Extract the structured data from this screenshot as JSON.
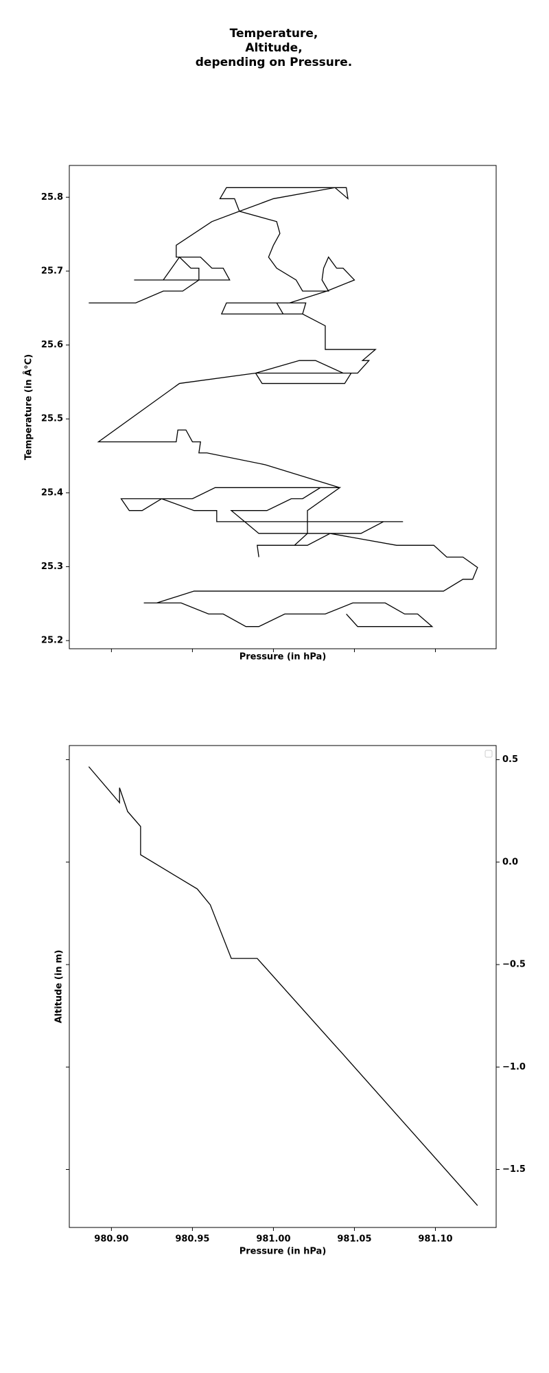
{
  "chart_data": [
    {
      "type": "line",
      "title": "Temperature,\nAltitude,\ndepending on Pressure.",
      "xlabel": "Pressure (in hPa)",
      "ylabel": "Temperature (in Â°C)",
      "xlim": [
        980.874,
        981.1375
      ],
      "ylim": [
        25.189,
        25.843
      ],
      "yticks": [
        25.2,
        25.3,
        25.4,
        25.5,
        25.6,
        25.7,
        25.8
      ],
      "x": [
        980.886,
        980.915,
        980.932,
        980.944,
        980.954,
        980.954,
        980.949,
        980.942,
        980.932,
        980.914,
        980.973,
        980.969,
        980.962,
        980.955,
        980.94,
        980.94,
        980.962,
        980.979,
        980.976,
        980.967,
        980.971,
        981.045,
        981.046,
        981.038,
        981.0,
        980.979,
        981.002,
        981.004,
        981.0,
        980.997,
        981.002,
        981.014,
        981.018,
        981.034,
        981.03,
        981.031,
        981.034,
        981.039,
        981.043,
        981.05,
        981.033,
        981.01,
        981.001,
        981.02,
        981.018,
        981.006,
        981.002,
        980.971,
        980.968,
        981.018,
        981.032,
        981.032,
        981.063,
        981.055,
        981.059,
        981.052,
        981.043,
        981.026,
        981.016,
        980.989,
        980.993,
        981.044,
        981.048,
        980.989,
        980.942,
        980.892,
        980.94,
        980.941,
        980.946,
        980.95,
        980.955,
        980.954,
        980.959,
        980.995,
        981.041,
        980.964,
        980.95,
        980.906,
        980.911,
        980.919,
        980.931,
        980.951,
        980.965,
        980.965,
        981.08,
        981.068,
        981.054,
        980.991,
        980.974,
        980.996,
        981.011,
        981.018,
        981.029,
        981.041,
        981.021,
        981.021,
        981.013,
        980.99,
        980.991,
        980.99,
        981.021,
        981.035,
        981.076,
        981.099,
        981.107,
        981.117,
        981.126,
        981.123,
        981.117,
        981.105,
        980.951,
        980.928,
        980.92,
        980.943,
        980.96,
        980.969,
        980.983,
        980.991,
        981.007,
        981.032,
        981.049,
        981.069,
        981.081,
        981.089,
        981.098,
        981.052,
        981.045
      ],
      "series": [
        {
          "color": "#000000",
          "values": [
            25.657,
            25.657,
            25.673,
            25.673,
            25.688,
            25.704,
            25.704,
            25.719,
            25.688,
            25.688,
            25.688,
            25.704,
            25.704,
            25.719,
            25.719,
            25.735,
            25.767,
            25.781,
            25.798,
            25.798,
            25.813,
            25.813,
            25.798,
            25.813,
            25.798,
            25.781,
            25.767,
            25.751,
            25.735,
            25.719,
            25.704,
            25.688,
            25.673,
            25.673,
            25.688,
            25.704,
            25.719,
            25.704,
            25.704,
            25.688,
            25.673,
            25.657,
            25.657,
            25.657,
            25.642,
            25.642,
            25.657,
            25.657,
            25.642,
            25.642,
            25.626,
            25.594,
            25.594,
            25.579,
            25.579,
            25.562,
            25.562,
            25.579,
            25.579,
            25.562,
            25.548,
            25.548,
            25.562,
            25.562,
            25.548,
            25.469,
            25.469,
            25.485,
            25.485,
            25.469,
            25.469,
            25.454,
            25.454,
            25.438,
            25.407,
            25.407,
            25.392,
            25.392,
            25.376,
            25.376,
            25.392,
            25.376,
            25.376,
            25.361,
            25.361,
            25.361,
            25.345,
            25.345,
            25.376,
            25.376,
            25.392,
            25.392,
            25.407,
            25.407,
            25.376,
            25.345,
            25.329,
            25.329,
            25.313,
            25.329,
            25.329,
            25.345,
            25.329,
            25.329,
            25.313,
            25.313,
            25.299,
            25.283,
            25.283,
            25.267,
            25.267,
            25.251,
            25.251,
            25.251,
            25.236,
            25.236,
            25.219,
            25.219,
            25.236,
            25.236,
            25.251,
            25.251,
            25.236,
            25.236,
            25.219,
            25.219,
            25.236
          ]
        }
      ]
    },
    {
      "type": "line",
      "xlabel": "Pressure (in hPa)",
      "ylabel": "Altitude (in m)",
      "xlim": [
        980.874,
        981.1375
      ],
      "y2lim": [
        -1.783,
        0.569
      ],
      "xticks": [
        {
          "value": 980.9,
          "label": "980.90"
        },
        980.95,
        {
          "value": 981.0,
          "label": "981.00"
        },
        981.05,
        {
          "value": 981.1,
          "label": "981.10"
        }
      ],
      "y2ticks": [
        {
          "value": -1.5,
          "label": "−1.5"
        },
        {
          "value": -1.0,
          "label": "−1.0"
        },
        {
          "value": -0.5,
          "label": "−0.5"
        },
        {
          "value": 0.0,
          "label": "0.0"
        },
        0.5
      ],
      "x": [
        980.886,
        980.905,
        980.905,
        980.91,
        980.918,
        980.918,
        980.953,
        980.961,
        980.974,
        980.99,
        981.039,
        981.042,
        981.126
      ],
      "series": [
        {
          "color": "#000000",
          "axis": "y2",
          "values": [
            0.466,
            0.29,
            0.363,
            0.247,
            0.174,
            0.036,
            -0.131,
            -0.208,
            -0.47,
            -0.47,
            -0.903,
            -0.929,
            -1.676
          ]
        }
      ]
    }
  ]
}
